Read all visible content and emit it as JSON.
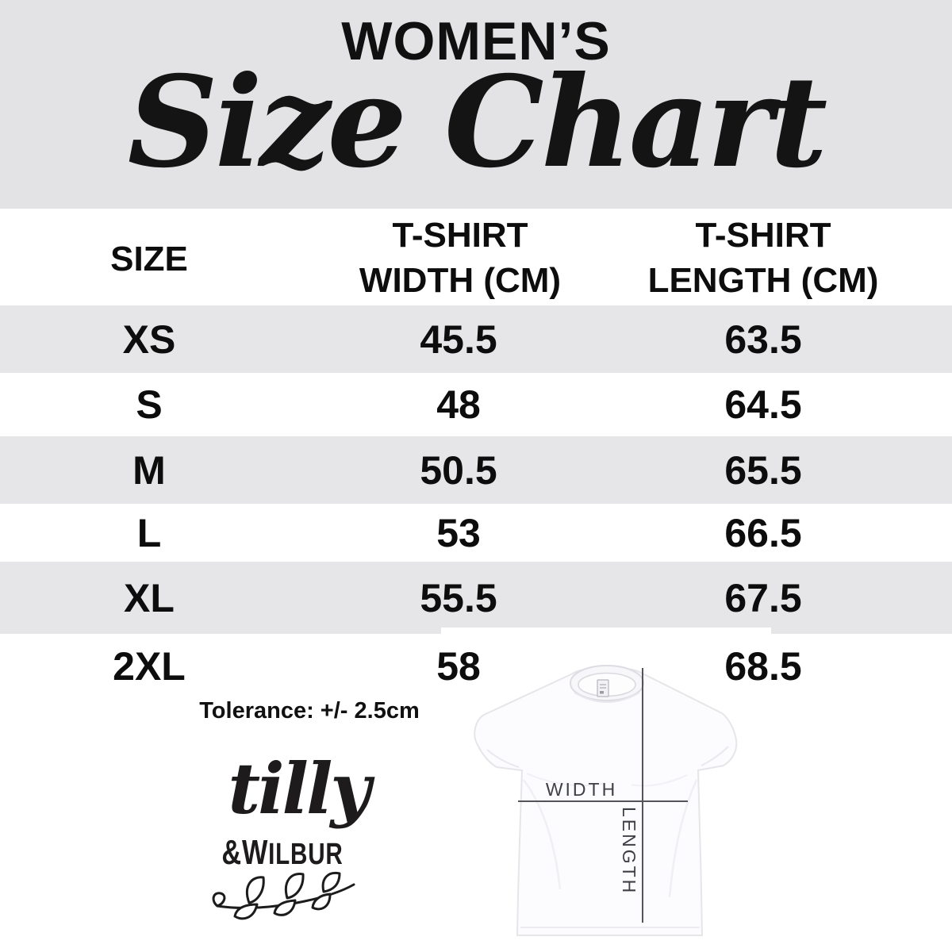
{
  "header": {
    "kicker": "WOMEN’S",
    "title": "Size Chart",
    "background": "#e3e3e5"
  },
  "table": {
    "header": {
      "size": "SIZE",
      "width": [
        "T-SHIRT",
        "WIDTH (CM)"
      ],
      "length": [
        "T-SHIRT",
        "LENGTH (CM)"
      ]
    },
    "rows": [
      {
        "size": "XS",
        "width": "45.5",
        "length": "63.5",
        "shaded": true
      },
      {
        "size": "S",
        "width": "48",
        "length": "64.5",
        "shaded": false
      },
      {
        "size": "M",
        "width": "50.5",
        "length": "65.5",
        "shaded": true
      },
      {
        "size": "L",
        "width": "53",
        "length": "66.5",
        "shaded": false
      },
      {
        "size": "XL",
        "width": "55.5",
        "length": "67.5",
        "shaded": true
      },
      {
        "size": "2XL",
        "width": "58",
        "length": "68.5",
        "shaded": false
      }
    ],
    "row_shade_color": "#e6e6e8"
  },
  "tolerance": {
    "text": "Tolerance: +/- 2.5cm"
  },
  "logo": {
    "name_script": "tilly",
    "name_caps": "&WILBUR"
  },
  "shirt_diagram": {
    "width_label": "WIDTH",
    "length_label": "LENGTH",
    "line_color": "#54555b"
  },
  "chart_data": {
    "type": "table",
    "title": "WOMEN'S Size Chart",
    "columns": [
      "SIZE",
      "T-SHIRT WIDTH (CM)",
      "T-SHIRT LENGTH (CM)"
    ],
    "rows": [
      [
        "XS",
        45.5,
        63.5
      ],
      [
        "S",
        48,
        64.5
      ],
      [
        "M",
        50.5,
        65.5
      ],
      [
        "L",
        53,
        66.5
      ],
      [
        "XL",
        55.5,
        67.5
      ],
      [
        "2XL",
        58,
        68.5
      ]
    ],
    "note": "Tolerance: +/- 2.5cm"
  }
}
